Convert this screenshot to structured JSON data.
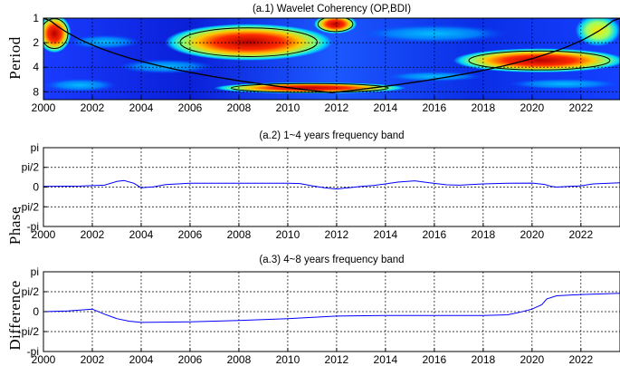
{
  "figure": {
    "ylabel_upper": "Period",
    "ylabel_lower": "Difference",
    "ylabel_mid": "Phase"
  },
  "chart_data": [
    {
      "type": "heatmap",
      "title": "(a.1)  Wavelet Coherency (OP,BDI)",
      "xlabel": "",
      "ylabel": "Period",
      "xlim": [
        2000,
        2023.6
      ],
      "ylim": [
        1,
        10
      ],
      "yscale": "log2",
      "x_ticks": [
        2000,
        2002,
        2004,
        2006,
        2008,
        2010,
        2012,
        2014,
        2016,
        2018,
        2020,
        2022
      ],
      "y_ticks": [
        1,
        2,
        4,
        8
      ],
      "grid": true,
      "colormap": [
        "#00008f",
        "#0050ff",
        "#00d4ff",
        "#7dff7a",
        "#ffe600",
        "#ff5000",
        "#b30000"
      ],
      "high_coherence_regions": [
        {
          "x": [
            2005.2,
            2011.6
          ],
          "period": [
            1.3,
            3.0
          ],
          "level": 0.98
        },
        {
          "x": [
            2000.0,
            2000.9
          ],
          "period": [
            1.0,
            2.4
          ],
          "level": 0.92
        },
        {
          "x": [
            2011.3,
            2012.6
          ],
          "period": [
            1.0,
            1.4
          ],
          "level": 0.92
        },
        {
          "x": [
            2007.2,
            2014.6
          ],
          "period": [
            6.8,
            7.6
          ],
          "level": 0.9
        },
        {
          "x": [
            2017.0,
            2023.6
          ],
          "period": [
            2.6,
            4.2
          ],
          "level": 0.9
        },
        {
          "x": [
            2022.0,
            2023.4
          ],
          "period": [
            1.0,
            2.0
          ],
          "level": 0.55
        }
      ]
    },
    {
      "type": "line",
      "title": "(a.2)  1~4 years frequency band",
      "xlabel": "",
      "ylabel": "",
      "xlim": [
        2000,
        2023.6
      ],
      "ylim": [
        -3.14159,
        3.14159
      ],
      "y_ticks": [
        3.14159,
        1.5708,
        0,
        -1.5708,
        -3.14159
      ],
      "y_tick_labels": [
        "pi",
        "pi/2",
        "0",
        "-pi/2",
        "-pi"
      ],
      "x_ticks": [
        2000,
        2002,
        2004,
        2006,
        2008,
        2010,
        2012,
        2014,
        2016,
        2018,
        2020,
        2022
      ],
      "grid": true,
      "line_color": "#0000ff",
      "x": [
        2000.0,
        2001.5,
        2002.5,
        2003.0,
        2003.3,
        2003.7,
        2004.0,
        2004.5,
        2005.0,
        2006.0,
        2008.0,
        2010.0,
        2010.5,
        2011.0,
        2011.5,
        2012.0,
        2012.5,
        2013.0,
        2013.5,
        2014.0,
        2014.5,
        2015.2,
        2015.8,
        2016.5,
        2017.0,
        2018.0,
        2019.0,
        2020.0,
        2020.5,
        2020.8,
        2021.0,
        2022.0,
        2022.5,
        2023.6
      ],
      "y": [
        0.05,
        0.08,
        0.15,
        0.45,
        0.52,
        0.3,
        -0.05,
        0.02,
        0.2,
        0.3,
        0.3,
        0.3,
        0.28,
        0.1,
        -0.05,
        -0.15,
        -0.05,
        0.05,
        0.12,
        0.25,
        0.4,
        0.5,
        0.35,
        0.18,
        0.15,
        0.25,
        0.3,
        0.32,
        0.22,
        0.05,
        0.0,
        0.1,
        0.25,
        0.35
      ]
    },
    {
      "type": "line",
      "title": "(a.3)  4~8 years frequency band",
      "xlabel": "",
      "ylabel": "",
      "xlim": [
        2000,
        2023.6
      ],
      "ylim": [
        -3.14159,
        3.14159
      ],
      "y_ticks": [
        3.14159,
        1.5708,
        0,
        -1.5708,
        -3.14159
      ],
      "y_tick_labels": [
        "pi",
        "pi/2",
        "0",
        "-pi/2",
        "-pi"
      ],
      "x_ticks": [
        2000,
        2002,
        2004,
        2006,
        2008,
        2010,
        2012,
        2014,
        2016,
        2018,
        2020,
        2022
      ],
      "grid": true,
      "line_color": "#0000ff",
      "x": [
        2000.0,
        2001.0,
        2002.0,
        2002.5,
        2003.0,
        2003.5,
        2004.0,
        2006.0,
        2008.0,
        2010.0,
        2012.0,
        2014.0,
        2016.0,
        2018.0,
        2019.0,
        2019.5,
        2020.0,
        2020.4,
        2020.6,
        2021.0,
        2022.0,
        2023.6
      ],
      "y": [
        0.0,
        0.05,
        0.2,
        -0.2,
        -0.55,
        -0.75,
        -0.85,
        -0.8,
        -0.7,
        -0.55,
        -0.35,
        -0.3,
        -0.3,
        -0.3,
        -0.25,
        -0.05,
        0.2,
        0.55,
        1.0,
        1.25,
        1.35,
        1.45
      ]
    }
  ]
}
